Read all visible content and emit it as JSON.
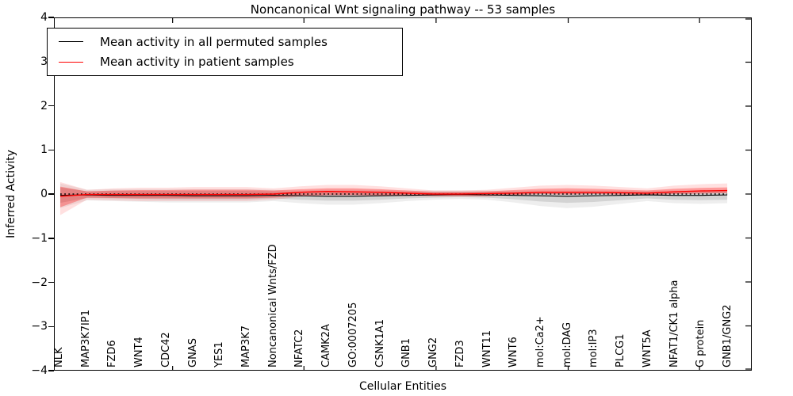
{
  "title": "Noncanonical Wnt signaling pathway -- 53 samples",
  "axes": {
    "ylabel": "Inferred Activity",
    "xlabel": "Cellular Entities",
    "yticks": [
      "4",
      "3",
      "2",
      "1",
      "0",
      "−1",
      "−2",
      "−3",
      "−4"
    ]
  },
  "legend": {
    "items": [
      {
        "label": "Mean activity in all permuted samples",
        "color": "#000000"
      },
      {
        "label": "Mean activity in patient samples",
        "color": "#ff0000"
      }
    ]
  },
  "colors": {
    "permuted_line": "#000000",
    "patient_line": "#ff0000",
    "permuted_band": "rgba(90,90,90,0.18)",
    "permuted_band_outer": "rgba(90,90,90,0.10)",
    "patient_band": "rgba(255,0,0,0.30)",
    "patient_band_outer": "rgba(255,0,0,0.12)",
    "reference_line": "#000000"
  },
  "chart_data": {
    "type": "line",
    "title": "Noncanonical Wnt signaling pathway -- 53 samples",
    "xlabel": "Cellular Entities",
    "ylabel": "Inferred Activity",
    "ylim": [
      -4,
      4
    ],
    "legend_position": "upper left",
    "grid": false,
    "reference_line": {
      "value": 0,
      "style": "dotted",
      "color": "#000000"
    },
    "categories": [
      "NLK",
      "MAP3K7IP1",
      "FZD6",
      "WNT4",
      "CDC42",
      "GNAS",
      "YES1",
      "MAP3K7",
      "Noncanonical Wnts/FZD",
      "NFATC2",
      "CAMK2A",
      "GO:0007205",
      "CSNK1A1",
      "GNB1",
      "GNG2",
      "FZD3",
      "WNT11",
      "WNT6",
      "mol:Ca2+",
      "mol:DAG",
      "mol:IP3",
      "PLCG1",
      "WNT5A",
      "NFAT1/CK1 alpha",
      "G protein",
      "GNB1/GNG2"
    ],
    "series": [
      {
        "name": "Mean activity in all permuted samples",
        "color": "#000000",
        "values": [
          -0.03,
          -0.02,
          -0.03,
          -0.03,
          -0.03,
          -0.04,
          -0.04,
          -0.04,
          -0.03,
          -0.04,
          -0.05,
          -0.05,
          -0.04,
          -0.03,
          -0.02,
          -0.01,
          -0.02,
          -0.03,
          -0.04,
          -0.05,
          -0.04,
          -0.03,
          -0.02,
          -0.03,
          -0.03,
          -0.02
        ]
      },
      {
        "name": "Mean activity in patient samples",
        "color": "#ff0000",
        "values": [
          -0.05,
          -0.01,
          -0.01,
          -0.01,
          -0.01,
          -0.01,
          -0.01,
          -0.01,
          0.0,
          0.04,
          0.06,
          0.05,
          0.04,
          0.02,
          0.0,
          0.0,
          0.01,
          0.02,
          0.04,
          0.04,
          0.04,
          0.03,
          0.02,
          0.05,
          0.07,
          0.08
        ]
      }
    ],
    "bands": [
      {
        "name": "permuted-std-band",
        "upper": [
          0.15,
          0.06,
          0.07,
          0.07,
          0.07,
          0.07,
          0.07,
          0.07,
          0.06,
          0.05,
          0.06,
          0.06,
          0.06,
          0.05,
          0.05,
          0.05,
          0.05,
          0.05,
          0.05,
          0.05,
          0.05,
          0.05,
          0.05,
          0.05,
          0.05,
          0.06
        ],
        "lower": [
          -0.2,
          -0.09,
          -0.1,
          -0.11,
          -0.12,
          -0.12,
          -0.12,
          -0.12,
          -0.1,
          -0.13,
          -0.15,
          -0.15,
          -0.13,
          -0.1,
          -0.08,
          -0.07,
          -0.08,
          -0.12,
          -0.17,
          -0.2,
          -0.18,
          -0.14,
          -0.1,
          -0.13,
          -0.14,
          -0.13
        ]
      },
      {
        "name": "patient-std-band",
        "upper": [
          0.17,
          0.06,
          0.08,
          0.09,
          0.09,
          0.1,
          0.1,
          0.1,
          0.08,
          0.11,
          0.13,
          0.13,
          0.11,
          0.08,
          0.05,
          0.05,
          0.06,
          0.09,
          0.12,
          0.13,
          0.12,
          0.1,
          0.08,
          0.12,
          0.14,
          0.15
        ],
        "lower": [
          -0.3,
          -0.08,
          -0.09,
          -0.1,
          -0.1,
          -0.1,
          -0.1,
          -0.1,
          -0.08,
          -0.04,
          -0.02,
          -0.02,
          -0.03,
          -0.03,
          -0.04,
          -0.04,
          -0.04,
          -0.02,
          0.0,
          -0.01,
          0.0,
          -0.01,
          -0.02,
          0.0,
          0.01,
          0.02
        ]
      }
    ]
  }
}
